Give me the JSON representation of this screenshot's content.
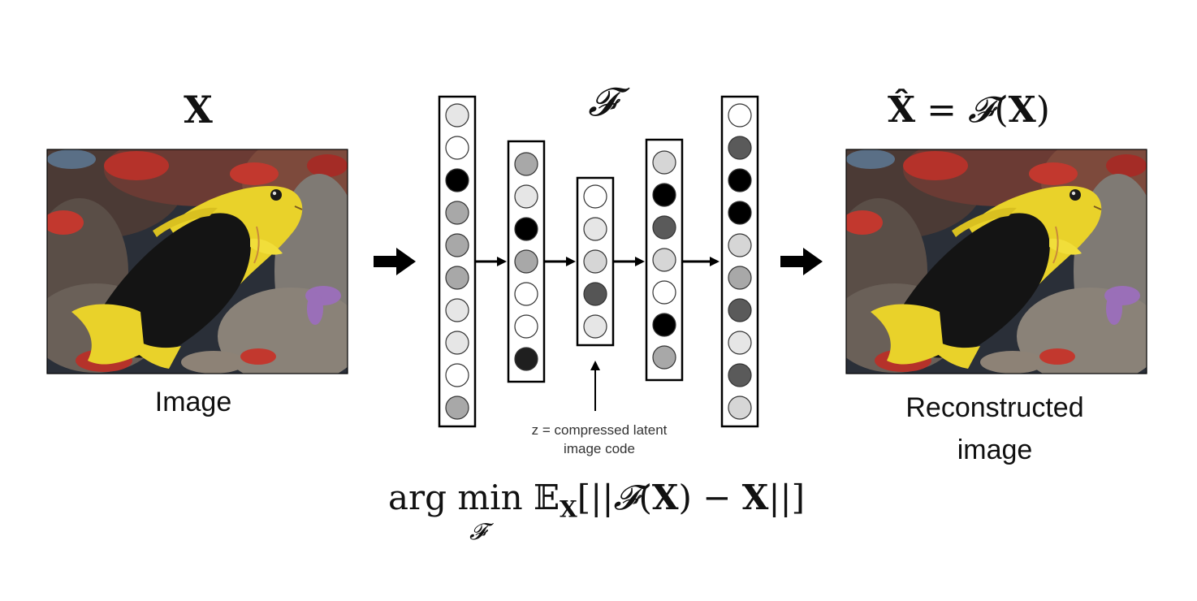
{
  "titles": {
    "input": "X",
    "network": "𝓕",
    "output_lhs": "X̂",
    "output_eq": " = ",
    "output_f": "𝓕",
    "output_open": "(",
    "output_x": "X",
    "output_close": ")"
  },
  "captions": {
    "input_image": "Image",
    "reconstructed_line1": "Reconstructed",
    "reconstructed_line2": "image",
    "latent_line1": "z = compressed latent",
    "latent_line2": "image code"
  },
  "formula": {
    "arg": "arg ",
    "min": "min",
    "under": "𝓕",
    "expect": " 𝔼",
    "sub_x": "X",
    "open": "[||",
    "f": "𝓕",
    "paren_open": "(",
    "x1": "X",
    "paren_close": ")",
    "minus": " − ",
    "x2": "X",
    "close": "||]"
  },
  "colors": {
    "accent_black": "#000000",
    "background": "#ffffff",
    "fish_yellow": "#e9d22a",
    "fish_black": "#141414",
    "coral_red": "#b5322a"
  },
  "layers": [
    [
      "#e6e6e6",
      "#ffffff",
      "#000000",
      "#a8a8a8",
      "#a8a8a8",
      "#a8a8a8",
      "#e6e6e6",
      "#e6e6e6",
      "#ffffff",
      "#a8a8a8"
    ],
    [
      "#a8a8a8",
      "#e6e6e6",
      "#000000",
      "#a8a8a8",
      "#ffffff",
      "#ffffff",
      "#1f1f1f"
    ],
    [
      "#ffffff",
      "#e6e6e6",
      "#d6d6d6",
      "#555555",
      "#e6e6e6"
    ],
    [
      "#d6d6d6",
      "#000000",
      "#5a5a5a",
      "#d6d6d6",
      "#ffffff",
      "#000000",
      "#a8a8a8"
    ],
    [
      "#ffffff",
      "#5a5a5a",
      "#000000",
      "#000000",
      "#d6d6d6",
      "#a8a8a8",
      "#5a5a5a",
      "#e6e6e6",
      "#5a5a5a",
      "#d6d6d6"
    ]
  ],
  "icons": {
    "input_arrow": "right-arrow-icon",
    "output_arrow": "right-arrow-icon",
    "latent_pointer": "up-arrow-icon"
  }
}
